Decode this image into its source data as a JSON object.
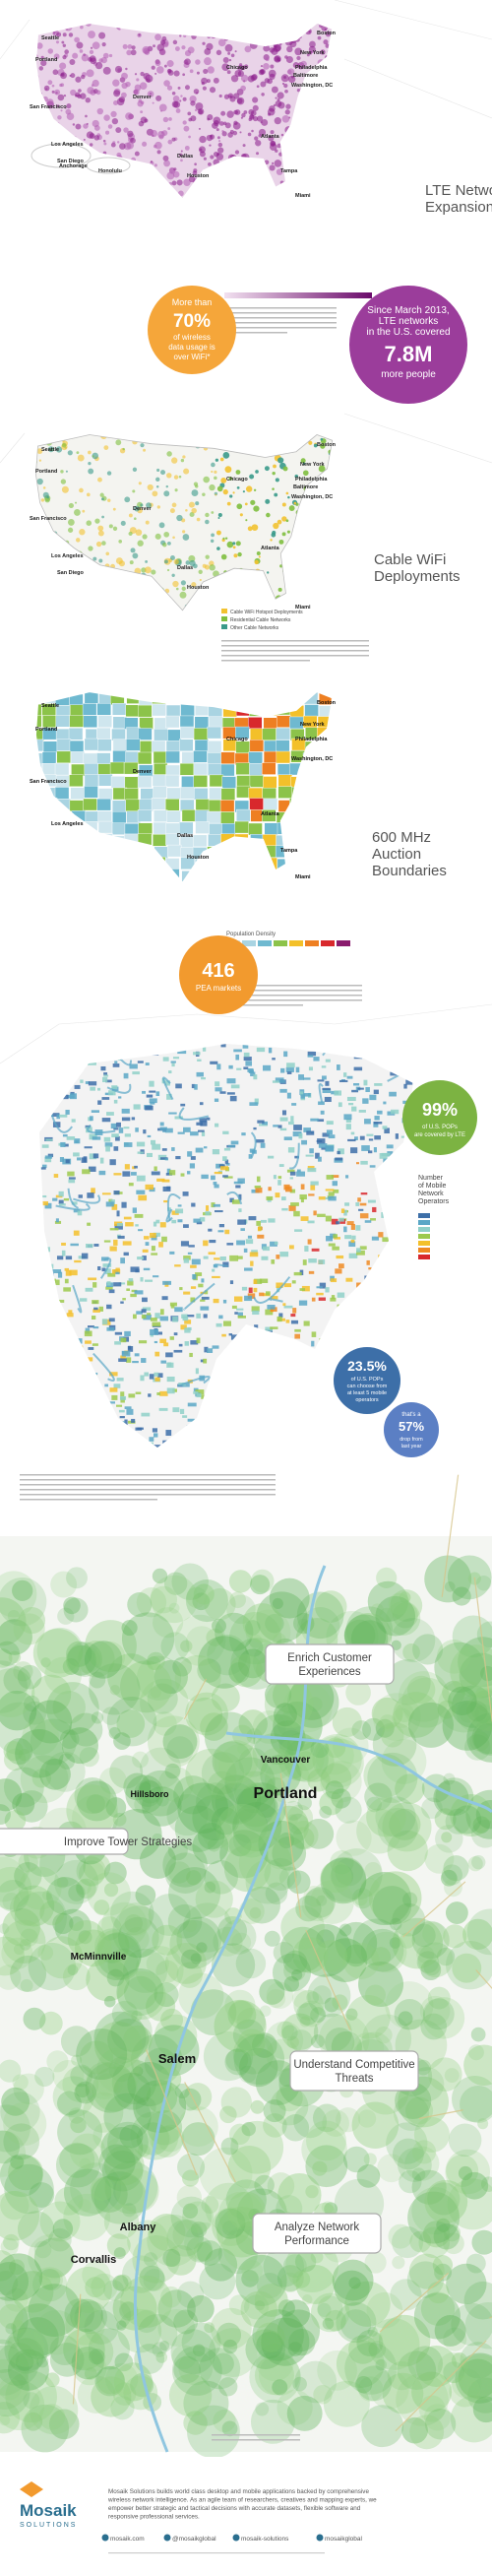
{
  "lte": {
    "title_lines": [
      "LTE Network",
      "Expansion"
    ],
    "cities": [
      "Seattle",
      "Portland",
      "San Francisco",
      "Los Angeles",
      "San Diego",
      "Denver",
      "Chicago",
      "Boston",
      "New York",
      "Philadelphia",
      "Baltimore",
      "Washington, DC",
      "Atlanta",
      "Dallas",
      "Houston",
      "Miami",
      "Tampa",
      "Anchorage",
      "Honolulu"
    ],
    "stat": {
      "lead_lines": [
        "Since March 2013,",
        "LTE networks",
        "in the U.S. covered"
      ],
      "value": "7.8M",
      "tail": "more people"
    },
    "wifi_stat": {
      "lead": "More than",
      "value": "70%",
      "tail_lines": [
        "of wireless",
        "data usage is",
        "over WiFi*"
      ]
    }
  },
  "cable": {
    "title_lines": [
      "Cable WiFi",
      "Deployments"
    ],
    "cities": [
      "Seattle",
      "Portland",
      "San Francisco",
      "Los Angeles",
      "San Diego",
      "Denver",
      "Chicago",
      "Boston",
      "New York",
      "Philadelphia",
      "Baltimore",
      "Washington, DC",
      "Atlanta",
      "Dallas",
      "Houston",
      "Miami"
    ],
    "legend": [
      "Cable WiFi Hotspot Deployments",
      "Residential Cable Networks",
      "Other Cable Networks"
    ]
  },
  "auction": {
    "title_lines": [
      "600 MHz",
      "Auction",
      "Boundaries"
    ],
    "cities": [
      "Seattle",
      "Portland",
      "San Francisco",
      "Los Angeles",
      "Denver",
      "Chicago",
      "Boston",
      "New York",
      "Philadelphia",
      "Washington, DC",
      "Atlanta",
      "Dallas",
      "Houston",
      "Miami",
      "Tampa"
    ],
    "legend_title": "Population Density",
    "stat": {
      "value": "416",
      "tail": "PEA markets"
    }
  },
  "operators": {
    "coverage": {
      "value": "99%",
      "tail_lines": [
        "of U.S. POPs",
        "are covered by LTE"
      ]
    },
    "legend_title_lines": [
      "Number",
      "of Mobile",
      "Network",
      "Operators"
    ],
    "choice": {
      "value": "23.5%",
      "tail_lines": [
        "of U.S. POPs",
        "can choose from",
        "at least 5 mobile",
        "operators"
      ]
    },
    "drop": {
      "lead": "that's a",
      "value": "57%",
      "tail_lines": [
        "drop from",
        "last year"
      ]
    }
  },
  "local": {
    "cities": [
      "Vancouver",
      "Portland",
      "Hillsboro",
      "McMinnville",
      "Salem",
      "Albany",
      "Corvallis"
    ],
    "callouts": [
      "Enrich Customer Experiences",
      "Improve Tower Strategies",
      "Understand Competitive Threats",
      "Analyze Network Performance"
    ]
  },
  "footer": {
    "logo": "Mosaik",
    "logo_sub": "SOLUTIONS",
    "description_lines": [
      "Mosaik Solutions builds world class desktop and mobile applications backed by comprehensive",
      "wireless network intelligence. As an agile team of researchers, creatives and mapping experts, we",
      "empower better strategic and tactical decisions with accurate datasets, flexible software and",
      "responsive professional services."
    ],
    "links": [
      "mosaik.com",
      "@mosaikglobal",
      "mosaik-solutions",
      "mosaikglobal"
    ]
  }
}
